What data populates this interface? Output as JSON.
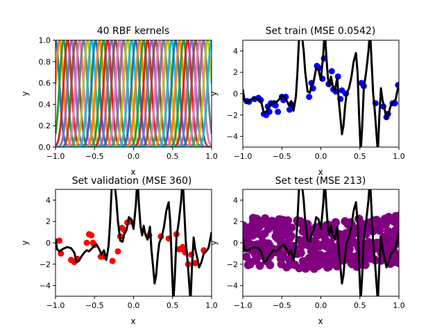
{
  "chart_data": [
    {
      "type": "line",
      "title": "40 RBF kernels",
      "xlabel": "x",
      "ylabel": "y",
      "xlim": [
        -1,
        1
      ],
      "ylim": [
        0,
        1
      ],
      "xticks": [
        "−1.0",
        "−0.5",
        "0.0",
        "0.5",
        "1.0"
      ],
      "xtick_values": [
        -1,
        -0.5,
        0,
        0.5,
        1
      ],
      "yticks": [
        "0.0",
        "0.2",
        "0.4",
        "0.6",
        "0.8",
        "1.0"
      ],
      "ytick_values": [
        0,
        0.2,
        0.4,
        0.6,
        0.8,
        1.0
      ],
      "kernels": {
        "count": 40,
        "center_min": -1,
        "center_max": 1,
        "width": 0.05
      },
      "colors": [
        "#1f77b4",
        "#ff7f0e",
        "#2ca02c",
        "#d62728",
        "#9467bd",
        "#8c564b",
        "#e377c2",
        "#7f7f7f",
        "#bcbd22",
        "#17becf"
      ]
    },
    {
      "type": "scatter",
      "title": "Set train (MSE 0.0542)",
      "xlabel": "x",
      "ylabel": "y",
      "xlim": [
        -1,
        1
      ],
      "ylim": [
        -5,
        5
      ],
      "xticks": [
        "−1.0",
        "−0.5",
        "0.0",
        "0.5",
        "1.0"
      ],
      "xtick_values": [
        -1,
        -0.5,
        0,
        0.5,
        1
      ],
      "yticks": [
        "−4",
        "−2",
        "0",
        "2",
        "4"
      ],
      "ytick_values": [
        -4,
        -2,
        0,
        2,
        4
      ],
      "point_color": "#0000ff",
      "points": [
        [
          -0.95,
          -0.7
        ],
        [
          -0.92,
          -0.75
        ],
        [
          -0.85,
          -0.5
        ],
        [
          -0.8,
          -0.4
        ],
        [
          -0.77,
          -0.6
        ],
        [
          -0.73,
          -1.9
        ],
        [
          -0.7,
          -2.0
        ],
        [
          -0.68,
          -1.2
        ],
        [
          -0.66,
          -1.7
        ],
        [
          -0.64,
          -0.9
        ],
        [
          -0.6,
          -1.0
        ],
        [
          -0.58,
          -1.1
        ],
        [
          -0.55,
          -1.7
        ],
        [
          -0.5,
          -0.3
        ],
        [
          -0.48,
          -0.6
        ],
        [
          -0.45,
          -0.3
        ],
        [
          -0.4,
          -1.5
        ],
        [
          -0.38,
          -1.0
        ],
        [
          -0.15,
          -0.3
        ],
        [
          -0.12,
          1.0
        ],
        [
          -0.1,
          0.5
        ],
        [
          -0.05,
          2.6
        ],
        [
          -0.02,
          2.4
        ],
        [
          0.02,
          1.4
        ],
        [
          0.04,
          3.3
        ],
        [
          0.1,
          0.9
        ],
        [
          0.14,
          2.1
        ],
        [
          0.16,
          0.4
        ],
        [
          0.19,
          0.2
        ],
        [
          0.22,
          1.6
        ],
        [
          0.25,
          -0.5
        ],
        [
          0.27,
          0.3
        ],
        [
          0.32,
          0.0
        ],
        [
          0.52,
          1.0
        ],
        [
          0.55,
          0.7
        ],
        [
          0.7,
          -0.9
        ],
        [
          0.8,
          -1.2
        ],
        [
          0.84,
          -2.2
        ],
        [
          0.86,
          -1.9
        ],
        [
          0.92,
          -0.9
        ],
        [
          0.95,
          -0.9
        ],
        [
          0.99,
          0.8
        ]
      ],
      "curve_color": "#000000",
      "curve": [
        [
          -1.0,
          0.4
        ],
        [
          -0.98,
          -0.6
        ],
        [
          -0.95,
          -0.8
        ],
        [
          -0.9,
          -0.55
        ],
        [
          -0.85,
          -0.4
        ],
        [
          -0.8,
          -0.5
        ],
        [
          -0.76,
          -0.9
        ],
        [
          -0.73,
          -1.8
        ],
        [
          -0.7,
          -1.7
        ],
        [
          -0.67,
          -1.3
        ],
        [
          -0.63,
          -0.9
        ],
        [
          -0.6,
          -0.7
        ],
        [
          -0.57,
          -0.8
        ],
        [
          -0.53,
          -0.5
        ],
        [
          -0.5,
          -0.25
        ],
        [
          -0.47,
          -0.2
        ],
        [
          -0.44,
          -0.6
        ],
        [
          -0.41,
          -1.1
        ],
        [
          -0.38,
          -0.7
        ],
        [
          -0.35,
          -1.6
        ],
        [
          -0.32,
          -0.3
        ],
        [
          -0.3,
          2.0
        ],
        [
          -0.28,
          5.2
        ],
        [
          -0.25,
          6.0
        ],
        [
          -0.22,
          4.0
        ],
        [
          -0.2,
          2.0
        ],
        [
          -0.17,
          0.2
        ],
        [
          -0.14,
          0.1
        ],
        [
          -0.12,
          0.8
        ],
        [
          -0.09,
          1.2
        ],
        [
          -0.06,
          2.4
        ],
        [
          -0.03,
          2.2
        ],
        [
          0.0,
          1.3
        ],
        [
          0.03,
          3.6
        ],
        [
          0.05,
          6.0
        ],
        [
          0.07,
          3.5
        ],
        [
          0.09,
          1.5
        ],
        [
          0.11,
          0.7
        ],
        [
          0.13,
          1.6
        ],
        [
          0.15,
          0.8
        ],
        [
          0.18,
          0.3
        ],
        [
          0.21,
          1.5
        ],
        [
          0.23,
          -0.7
        ],
        [
          0.25,
          -2.2
        ],
        [
          0.27,
          -3.8
        ],
        [
          0.29,
          -3.0
        ],
        [
          0.31,
          -1.2
        ],
        [
          0.33,
          0.0
        ],
        [
          0.36,
          0.5
        ],
        [
          0.39,
          1.5
        ],
        [
          0.42,
          3.0
        ],
        [
          0.45,
          3.8
        ],
        [
          0.47,
          2.0
        ],
        [
          0.49,
          -2.0
        ],
        [
          0.51,
          -5.5
        ],
        [
          0.53,
          -3.0
        ],
        [
          0.55,
          0.5
        ],
        [
          0.58,
          2.0
        ],
        [
          0.61,
          4.0
        ],
        [
          0.63,
          6.0
        ],
        [
          0.65,
          3.0
        ],
        [
          0.67,
          0.0
        ],
        [
          0.69,
          -1.5
        ],
        [
          0.71,
          -3.5
        ],
        [
          0.73,
          -5.5
        ],
        [
          0.75,
          -2.0
        ],
        [
          0.77,
          0.5
        ],
        [
          0.79,
          -0.6
        ],
        [
          0.81,
          -1.2
        ],
        [
          0.84,
          -2.3
        ],
        [
          0.87,
          -1.8
        ],
        [
          0.9,
          -1.0
        ],
        [
          0.93,
          -0.8
        ],
        [
          0.96,
          -0.5
        ],
        [
          1.0,
          1.0
        ]
      ]
    },
    {
      "type": "scatter",
      "title": "Set validation (MSE 360)",
      "xlabel": "x",
      "ylabel": "y",
      "xlim": [
        -1,
        1
      ],
      "ylim": [
        -5,
        5
      ],
      "xticks": [
        "−1.0",
        "−0.5",
        "0.0",
        "0.5",
        "1.0"
      ],
      "xtick_values": [
        -1,
        -0.5,
        0,
        0.5,
        1
      ],
      "yticks": [
        "−4",
        "−2",
        "0",
        "2",
        "4"
      ],
      "ytick_values": [
        -4,
        -2,
        0,
        2,
        4
      ],
      "point_color": "#ff0000",
      "points": [
        [
          -0.95,
          0.2
        ],
        [
          -0.93,
          -1.0
        ],
        [
          -0.8,
          -1.6
        ],
        [
          -0.76,
          -1.8
        ],
        [
          -0.72,
          -1.5
        ],
        [
          -0.6,
          0.0
        ],
        [
          -0.57,
          0.8
        ],
        [
          -0.54,
          0.7
        ],
        [
          -0.52,
          0.0
        ],
        [
          -0.5,
          -0.2
        ],
        [
          -0.42,
          -1.3
        ],
        [
          -0.37,
          -1.3
        ],
        [
          -0.27,
          -1.7
        ],
        [
          -0.2,
          -0.8
        ],
        [
          -0.17,
          0.6
        ],
        [
          -0.15,
          1.4
        ],
        [
          -0.12,
          1.2
        ],
        [
          -0.08,
          1.9
        ],
        [
          -0.04,
          2.0
        ],
        [
          0.2,
          0.7
        ],
        [
          0.35,
          0.6
        ],
        [
          0.45,
          0.4
        ],
        [
          0.55,
          0.8
        ],
        [
          0.58,
          -0.6
        ],
        [
          0.6,
          -0.6
        ],
        [
          0.63,
          -0.4
        ],
        [
          0.66,
          -0.9
        ],
        [
          0.7,
          -2.0
        ],
        [
          0.74,
          -1.1
        ],
        [
          0.79,
          -1.9
        ],
        [
          0.9,
          -0.7
        ]
      ],
      "curve_color": "#000000",
      "curve": [
        [
          -1.0,
          0.4
        ],
        [
          -0.98,
          -0.6
        ],
        [
          -0.95,
          -0.8
        ],
        [
          -0.9,
          -0.55
        ],
        [
          -0.85,
          -0.4
        ],
        [
          -0.8,
          -0.5
        ],
        [
          -0.76,
          -0.9
        ],
        [
          -0.73,
          -1.8
        ],
        [
          -0.7,
          -1.7
        ],
        [
          -0.67,
          -1.3
        ],
        [
          -0.63,
          -0.9
        ],
        [
          -0.6,
          -0.7
        ],
        [
          -0.57,
          -0.8
        ],
        [
          -0.53,
          -0.5
        ],
        [
          -0.5,
          -0.25
        ],
        [
          -0.47,
          -0.2
        ],
        [
          -0.44,
          -0.6
        ],
        [
          -0.41,
          -1.1
        ],
        [
          -0.38,
          -0.7
        ],
        [
          -0.35,
          -1.6
        ],
        [
          -0.32,
          -0.3
        ],
        [
          -0.3,
          2.0
        ],
        [
          -0.28,
          5.2
        ],
        [
          -0.25,
          6.0
        ],
        [
          -0.22,
          4.0
        ],
        [
          -0.2,
          2.0
        ],
        [
          -0.17,
          0.2
        ],
        [
          -0.14,
          0.1
        ],
        [
          -0.12,
          0.8
        ],
        [
          -0.09,
          1.2
        ],
        [
          -0.06,
          2.4
        ],
        [
          -0.03,
          2.2
        ],
        [
          0.0,
          1.3
        ],
        [
          0.03,
          3.6
        ],
        [
          0.05,
          6.0
        ],
        [
          0.07,
          3.5
        ],
        [
          0.09,
          1.5
        ],
        [
          0.11,
          0.7
        ],
        [
          0.13,
          1.6
        ],
        [
          0.15,
          0.8
        ],
        [
          0.18,
          0.3
        ],
        [
          0.21,
          1.5
        ],
        [
          0.23,
          -0.7
        ],
        [
          0.25,
          -2.2
        ],
        [
          0.27,
          -3.8
        ],
        [
          0.29,
          -3.0
        ],
        [
          0.31,
          -1.2
        ],
        [
          0.33,
          0.0
        ],
        [
          0.36,
          0.5
        ],
        [
          0.39,
          1.5
        ],
        [
          0.42,
          3.0
        ],
        [
          0.45,
          3.8
        ],
        [
          0.47,
          2.0
        ],
        [
          0.49,
          -2.0
        ],
        [
          0.51,
          -5.5
        ],
        [
          0.53,
          -3.0
        ],
        [
          0.55,
          0.5
        ],
        [
          0.58,
          2.0
        ],
        [
          0.61,
          4.0
        ],
        [
          0.63,
          6.0
        ],
        [
          0.65,
          3.0
        ],
        [
          0.67,
          0.0
        ],
        [
          0.69,
          -1.5
        ],
        [
          0.71,
          -3.5
        ],
        [
          0.73,
          -5.5
        ],
        [
          0.75,
          -2.0
        ],
        [
          0.77,
          0.5
        ],
        [
          0.79,
          -0.6
        ],
        [
          0.81,
          -1.2
        ],
        [
          0.84,
          -2.3
        ],
        [
          0.87,
          -1.8
        ],
        [
          0.9,
          -1.0
        ],
        [
          0.93,
          -0.8
        ],
        [
          0.96,
          -0.5
        ],
        [
          1.0,
          1.0
        ]
      ]
    },
    {
      "type": "scatter",
      "title": "Set test (MSE 213)",
      "xlabel": "x",
      "ylabel": "y",
      "xlim": [
        -1,
        1
      ],
      "ylim": [
        -5,
        5
      ],
      "xticks": [
        "−1.0",
        "−0.5",
        "0.0",
        "0.5",
        "1.0"
      ],
      "xtick_values": [
        -1,
        -0.5,
        0,
        0.5,
        1
      ],
      "yticks": [
        "−4",
        "−2",
        "0",
        "2",
        "4"
      ],
      "ytick_values": [
        -4,
        -2,
        0,
        2,
        4
      ],
      "point_color": "#800080",
      "test_band": {
        "count": 400,
        "trend": "sin",
        "amplitude": 1.5,
        "cycles": 1,
        "spread": 2.5
      },
      "curve_color": "#000000",
      "curve": [
        [
          -1.0,
          0.4
        ],
        [
          -0.98,
          -0.6
        ],
        [
          -0.95,
          -0.8
        ],
        [
          -0.9,
          -0.55
        ],
        [
          -0.85,
          -0.4
        ],
        [
          -0.8,
          -0.5
        ],
        [
          -0.76,
          -0.9
        ],
        [
          -0.73,
          -1.8
        ],
        [
          -0.7,
          -1.7
        ],
        [
          -0.67,
          -1.3
        ],
        [
          -0.63,
          -0.9
        ],
        [
          -0.6,
          -0.7
        ],
        [
          -0.57,
          -0.8
        ],
        [
          -0.53,
          -0.5
        ],
        [
          -0.5,
          -0.25
        ],
        [
          -0.47,
          -0.2
        ],
        [
          -0.44,
          -0.6
        ],
        [
          -0.41,
          -1.1
        ],
        [
          -0.38,
          -0.7
        ],
        [
          -0.35,
          -1.6
        ],
        [
          -0.32,
          -0.3
        ],
        [
          -0.3,
          2.0
        ],
        [
          -0.28,
          5.2
        ],
        [
          -0.25,
          6.0
        ],
        [
          -0.22,
          4.0
        ],
        [
          -0.2,
          2.0
        ],
        [
          -0.17,
          0.2
        ],
        [
          -0.14,
          0.1
        ],
        [
          -0.12,
          0.8
        ],
        [
          -0.09,
          1.2
        ],
        [
          -0.06,
          2.4
        ],
        [
          -0.03,
          2.2
        ],
        [
          0.0,
          1.3
        ],
        [
          0.03,
          3.6
        ],
        [
          0.05,
          6.0
        ],
        [
          0.07,
          3.5
        ],
        [
          0.09,
          1.5
        ],
        [
          0.11,
          0.7
        ],
        [
          0.13,
          1.6
        ],
        [
          0.15,
          0.8
        ],
        [
          0.18,
          0.3
        ],
        [
          0.21,
          1.5
        ],
        [
          0.23,
          -0.7
        ],
        [
          0.25,
          -2.2
        ],
        [
          0.27,
          -3.8
        ],
        [
          0.29,
          -3.0
        ],
        [
          0.31,
          -1.2
        ],
        [
          0.33,
          0.0
        ],
        [
          0.36,
          0.5
        ],
        [
          0.39,
          1.5
        ],
        [
          0.42,
          3.0
        ],
        [
          0.45,
          3.8
        ],
        [
          0.47,
          2.0
        ],
        [
          0.49,
          -2.0
        ],
        [
          0.51,
          -5.5
        ],
        [
          0.53,
          -3.0
        ],
        [
          0.55,
          0.5
        ],
        [
          0.58,
          2.0
        ],
        [
          0.61,
          4.0
        ],
        [
          0.63,
          6.0
        ],
        [
          0.65,
          3.0
        ],
        [
          0.67,
          0.0
        ],
        [
          0.69,
          -1.5
        ],
        [
          0.71,
          -3.5
        ],
        [
          0.73,
          -5.5
        ],
        [
          0.75,
          -2.0
        ],
        [
          0.77,
          0.5
        ],
        [
          0.79,
          -0.6
        ],
        [
          0.81,
          -1.2
        ],
        [
          0.84,
          -2.3
        ],
        [
          0.87,
          -1.8
        ],
        [
          0.9,
          -1.0
        ],
        [
          0.93,
          -0.8
        ],
        [
          0.96,
          -0.5
        ],
        [
          1.0,
          1.0
        ]
      ]
    }
  ]
}
